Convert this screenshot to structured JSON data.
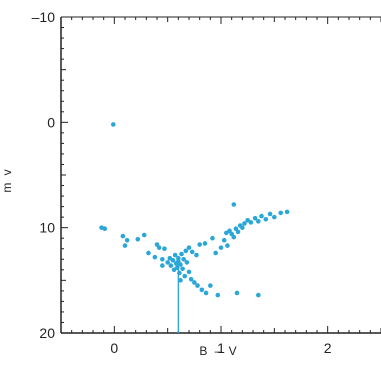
{
  "chart_data": {
    "type": "scatter",
    "title": "",
    "xlabel": "B – V",
    "ylabel": "m v",
    "xlim": [
      -0.5,
      2.5
    ],
    "ylim": [
      20,
      -10
    ],
    "y_inverted": true,
    "x_ticks": [
      0,
      1,
      2
    ],
    "y_ticks": [
      -10,
      0,
      10,
      20
    ],
    "x_tick_labels": [
      "0",
      "1",
      "2"
    ],
    "y_tick_labels": [
      "–10",
      "0",
      "10",
      "20"
    ],
    "grid": false,
    "legend": "none",
    "marker_color": "#2aa7d8",
    "axis_color": "#222222",
    "reference_line": {
      "x": 0.6,
      "y_from": 13.2,
      "y_to": 20
    },
    "points": [
      {
        "x": -0.01,
        "y": 0.2
      },
      {
        "x": -0.12,
        "y": 10.0
      },
      {
        "x": -0.09,
        "y": 10.1
      },
      {
        "x": 0.08,
        "y": 10.8
      },
      {
        "x": 0.12,
        "y": 11.2
      },
      {
        "x": 0.1,
        "y": 11.7
      },
      {
        "x": 0.22,
        "y": 11.1
      },
      {
        "x": 0.28,
        "y": 10.7
      },
      {
        "x": 0.32,
        "y": 12.4
      },
      {
        "x": 0.38,
        "y": 12.8
      },
      {
        "x": 0.4,
        "y": 11.6
      },
      {
        "x": 0.42,
        "y": 11.9
      },
      {
        "x": 0.45,
        "y": 13.0
      },
      {
        "x": 0.47,
        "y": 12.0
      },
      {
        "x": 0.5,
        "y": 13.3
      },
      {
        "x": 0.52,
        "y": 12.9
      },
      {
        "x": 0.53,
        "y": 13.6
      },
      {
        "x": 0.55,
        "y": 13.1
      },
      {
        "x": 0.56,
        "y": 14.0
      },
      {
        "x": 0.57,
        "y": 12.6
      },
      {
        "x": 0.58,
        "y": 13.4
      },
      {
        "x": 0.59,
        "y": 13.8
      },
      {
        "x": 0.6,
        "y": 13.2
      },
      {
        "x": 0.6,
        "y": 12.9
      },
      {
        "x": 0.61,
        "y": 14.3
      },
      {
        "x": 0.62,
        "y": 13.5
      },
      {
        "x": 0.63,
        "y": 12.5
      },
      {
        "x": 0.64,
        "y": 13.9
      },
      {
        "x": 0.65,
        "y": 13.0
      },
      {
        "x": 0.66,
        "y": 14.6
      },
      {
        "x": 0.67,
        "y": 12.2
      },
      {
        "x": 0.68,
        "y": 13.3
      },
      {
        "x": 0.7,
        "y": 11.9
      },
      {
        "x": 0.72,
        "y": 14.9
      },
      {
        "x": 0.73,
        "y": 12.3
      },
      {
        "x": 0.75,
        "y": 15.2
      },
      {
        "x": 0.77,
        "y": 12.6
      },
      {
        "x": 0.78,
        "y": 15.5
      },
      {
        "x": 0.8,
        "y": 11.6
      },
      {
        "x": 0.82,
        "y": 15.9
      },
      {
        "x": 0.85,
        "y": 11.5
      },
      {
        "x": 0.86,
        "y": 16.2
      },
      {
        "x": 0.9,
        "y": 15.5
      },
      {
        "x": 0.92,
        "y": 11.0
      },
      {
        "x": 0.95,
        "y": 12.4
      },
      {
        "x": 0.97,
        "y": 16.4
      },
      {
        "x": 1.0,
        "y": 11.9
      },
      {
        "x": 1.03,
        "y": 11.2
      },
      {
        "x": 1.05,
        "y": 10.5
      },
      {
        "x": 1.06,
        "y": 11.7
      },
      {
        "x": 1.08,
        "y": 10.3
      },
      {
        "x": 1.1,
        "y": 10.6
      },
      {
        "x": 1.12,
        "y": 10.9
      },
      {
        "x": 1.12,
        "y": 7.8
      },
      {
        "x": 1.14,
        "y": 10.1
      },
      {
        "x": 1.16,
        "y": 10.4
      },
      {
        "x": 1.18,
        "y": 9.8
      },
      {
        "x": 1.2,
        "y": 10.0
      },
      {
        "x": 1.22,
        "y": 9.6
      },
      {
        "x": 1.25,
        "y": 9.3
      },
      {
        "x": 1.28,
        "y": 9.5
      },
      {
        "x": 1.32,
        "y": 9.1
      },
      {
        "x": 1.35,
        "y": 9.4
      },
      {
        "x": 1.38,
        "y": 8.9
      },
      {
        "x": 1.42,
        "y": 9.2
      },
      {
        "x": 1.46,
        "y": 8.7
      },
      {
        "x": 1.5,
        "y": 9.0
      },
      {
        "x": 1.56,
        "y": 8.6
      },
      {
        "x": 1.62,
        "y": 8.5
      },
      {
        "x": 1.15,
        "y": 16.2
      },
      {
        "x": 1.35,
        "y": 16.4
      },
      {
        "x": 0.62,
        "y": 15.0
      },
      {
        "x": 0.7,
        "y": 14.2
      },
      {
        "x": 0.45,
        "y": 13.6
      }
    ]
  }
}
